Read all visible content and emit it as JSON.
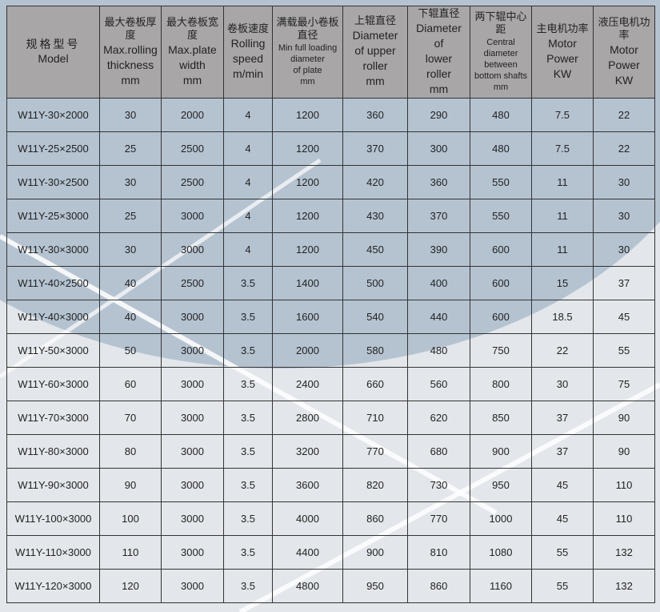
{
  "headers": [
    {
      "zh": "规格型号",
      "en": [
        "Model"
      ]
    },
    {
      "zh": "最大卷板厚度",
      "en": [
        "Max.rolling",
        "thickness",
        "mm"
      ]
    },
    {
      "zh": "最大卷板宽度",
      "en": [
        "Max.plate",
        "width",
        "mm"
      ]
    },
    {
      "zh": "卷板速度",
      "en": [
        "Rolling",
        "speed",
        "m/min"
      ]
    },
    {
      "zh": "满载最小卷板直径",
      "en": [
        "Min full loading",
        "diameter",
        "of plate",
        "mm"
      ]
    },
    {
      "zh": "上辊直径",
      "en": [
        "Diameter",
        "of upper",
        "roller",
        "mm"
      ]
    },
    {
      "zh": "下辊直径",
      "en": [
        "Diameter",
        "of",
        "lower",
        "roller",
        "mm"
      ]
    },
    {
      "zh": "两下辊中心距",
      "en": [
        "Central",
        "diameter",
        "between",
        "bottom shafts",
        "mm"
      ]
    },
    {
      "zh": "主电机功率",
      "en": [
        "Motor",
        "Power",
        "KW"
      ]
    },
    {
      "zh": "液压电机功率",
      "en": [
        "Motor",
        "Power",
        "KW"
      ]
    }
  ],
  "rows": [
    [
      "W11Y-30×2000",
      "30",
      "2000",
      "4",
      "1200",
      "360",
      "290",
      "480",
      "7.5",
      "22"
    ],
    [
      "W11Y-25×2500",
      "25",
      "2500",
      "4",
      "1200",
      "370",
      "300",
      "480",
      "7.5",
      "22"
    ],
    [
      "W11Y-30×2500",
      "30",
      "2500",
      "4",
      "1200",
      "420",
      "360",
      "550",
      "11",
      "30"
    ],
    [
      "W11Y-25×3000",
      "25",
      "3000",
      "4",
      "1200",
      "430",
      "370",
      "550",
      "11",
      "30"
    ],
    [
      "W11Y-30×3000",
      "30",
      "3000",
      "4",
      "1200",
      "450",
      "390",
      "600",
      "11",
      "30"
    ],
    [
      "W11Y-40×2500",
      "40",
      "2500",
      "3.5",
      "1400",
      "500",
      "400",
      "600",
      "15",
      "37"
    ],
    [
      "W11Y-40×3000",
      "40",
      "3000",
      "3.5",
      "1600",
      "540",
      "440",
      "600",
      "18.5",
      "45"
    ],
    [
      "W11Y-50×3000",
      "50",
      "3000",
      "3.5",
      "2000",
      "580",
      "480",
      "750",
      "22",
      "55"
    ],
    [
      "W11Y-60×3000",
      "60",
      "3000",
      "3.5",
      "2400",
      "660",
      "560",
      "800",
      "30",
      "75"
    ],
    [
      "W11Y-70×3000",
      "70",
      "3000",
      "3.5",
      "2800",
      "710",
      "620",
      "850",
      "37",
      "90"
    ],
    [
      "W11Y-80×3000",
      "80",
      "3000",
      "3.5",
      "3200",
      "770",
      "680",
      "900",
      "37",
      "90"
    ],
    [
      "W11Y-90×3000",
      "90",
      "3000",
      "3.5",
      "3600",
      "820",
      "730",
      "950",
      "45",
      "110"
    ],
    [
      "W11Y-100×3000",
      "100",
      "3000",
      "3.5",
      "4000",
      "860",
      "770",
      "1000",
      "45",
      "110"
    ],
    [
      "W11Y-110×3000",
      "110",
      "3000",
      "3.5",
      "4400",
      "900",
      "810",
      "1080",
      "55",
      "132"
    ],
    [
      "W11Y-120×3000",
      "120",
      "3000",
      "3.5",
      "4800",
      "950",
      "860",
      "1160",
      "55",
      "132"
    ]
  ]
}
